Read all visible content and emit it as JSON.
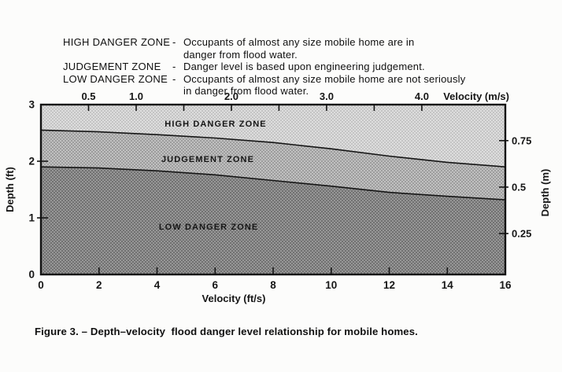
{
  "page": {
    "background": "#fcfcfb",
    "ink": "#161616"
  },
  "legend": {
    "items": [
      {
        "term": "HIGH DANGER ZONE",
        "separator": "-",
        "lines": [
          "Occupants of almost any size mobile home are in",
          "danger from flood water."
        ]
      },
      {
        "term": "JUDGEMENT ZONE",
        "separator": "-",
        "lines": [
          "Danger level is based upon engineering judgement."
        ]
      },
      {
        "term": "LOW DANGER ZONE",
        "separator": "-",
        "lines": [
          "Occupants of almost any size mobile home are not seriously",
          "in danger from flood water."
        ]
      }
    ]
  },
  "caption": "Figure 3. – Depth–velocity  flood danger level relationship for mobile homes.",
  "chart_data": {
    "type": "area",
    "title": "Depth-velocity flood danger level relationship for mobile homes",
    "grid": false,
    "x_axis_bottom": {
      "label": "Velocity (ft/s)",
      "min": 0,
      "max": 16,
      "ticks": [
        0,
        2,
        4,
        6,
        8,
        10,
        12,
        14,
        16
      ]
    },
    "x_axis_top": {
      "label": "Velocity (m/s)",
      "ft_per_m": 3.2808,
      "tick_values_ms": [
        0.5,
        1.0,
        1.5,
        2.0,
        2.5,
        3.0,
        3.5,
        4.0
      ],
      "tick_labels": [
        "0.5",
        "1.0",
        "",
        "2.0",
        "",
        "3.0",
        "",
        "4.0"
      ]
    },
    "y_axis_left": {
      "label": "Depth (ft)",
      "min": 0,
      "max": 3,
      "ticks": [
        0,
        1,
        2,
        3
      ],
      "inner_tick_depths": [
        1,
        2
      ]
    },
    "y_axis_right": {
      "label": "Depth (m)",
      "tick_values_m": [
        0.25,
        0.5,
        0.75
      ],
      "tick_labels": [
        "0.25",
        "0.5",
        "0.75"
      ]
    },
    "zones": [
      {
        "name": "HIGH DANGER ZONE",
        "label_pos": {
          "v": 6.02,
          "depth": 2.67
        },
        "base_color": "#dedede",
        "dot_color": "#c2c2c2"
      },
      {
        "name": "JUDGEMENT ZONE",
        "label_pos": {
          "v": 5.75,
          "depth": 2.04
        },
        "base_color": "#c1c1c1",
        "dot_color": "#9a9a9a"
      },
      {
        "name": "LOW DANGER ZONE",
        "label_pos": {
          "v": 5.78,
          "depth": 0.85
        },
        "base_color": "#989898",
        "dot_color": "#6e6e6e"
      }
    ],
    "boundaries": {
      "velocity_ft_s": [
        0,
        2,
        4,
        6,
        8,
        10,
        12,
        14,
        16
      ],
      "upper_curve_depth_ft": [
        2.55,
        2.52,
        2.47,
        2.41,
        2.33,
        2.22,
        2.09,
        1.98,
        1.9
      ],
      "lower_curve_depth_ft": [
        1.9,
        1.88,
        1.83,
        1.76,
        1.66,
        1.56,
        1.45,
        1.38,
        1.32
      ]
    },
    "line_color": "#151515"
  }
}
